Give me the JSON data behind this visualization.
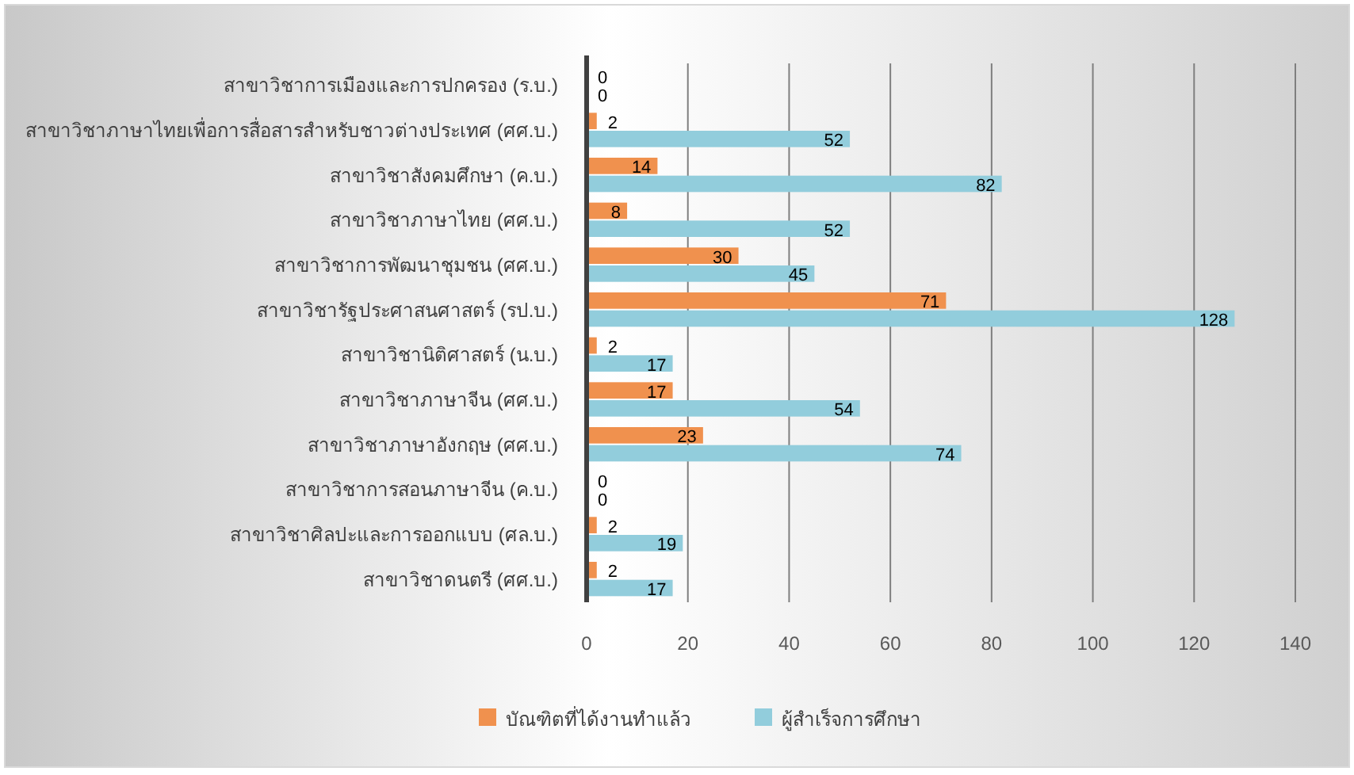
{
  "chart_data": {
    "type": "bar",
    "orientation": "horizontal",
    "categories": [
      "สาขาวิชาการเมืองและการปกครอง (ร.บ.)",
      "สาขาวิชาภาษาไทยเพื่อการสื่อสารสำหรับชาวต่างประเทศ (ศศ.บ.)",
      "สาขาวิชาสังคมศึกษา (ค.บ.)",
      "สาขาวิชาภาษาไทย (ศศ.บ.)",
      "สาขาวิชาการพัฒนาชุมชน (ศศ.บ.)",
      "สาขาวิชารัฐประศาสนศาสตร์ (รป.บ.)",
      "สาขาวิชานิติศาสตร์ (น.บ.)",
      "สาขาวิชาภาษาจีน (ศศ.บ.)",
      "สาขาวิชาภาษาอังกฤษ (ศศ.บ.)",
      "สาขาวิชาการสอนภาษาจีน (ค.บ.)",
      "สาขาวิชาศิลปะและการออกแบบ (ศล.บ.)",
      "สาขาวิชาดนตรี (ศศ.บ.)"
    ],
    "series": [
      {
        "name": "บัณฑิตที่ได้งานทำแล้ว",
        "color": "#f0914e",
        "values": [
          0,
          2,
          14,
          8,
          30,
          71,
          2,
          17,
          23,
          0,
          2,
          2
        ]
      },
      {
        "name": "ผู้สำเร็จการศึกษา",
        "color": "#92cddc",
        "values": [
          0,
          52,
          82,
          52,
          45,
          128,
          17,
          54,
          74,
          0,
          19,
          17
        ]
      }
    ],
    "xlim": [
      0,
      140
    ],
    "xticks": [
      0,
      20,
      40,
      60,
      80,
      100,
      120,
      140
    ],
    "grid": "x",
    "legend": "bottom",
    "data_labels": true
  }
}
